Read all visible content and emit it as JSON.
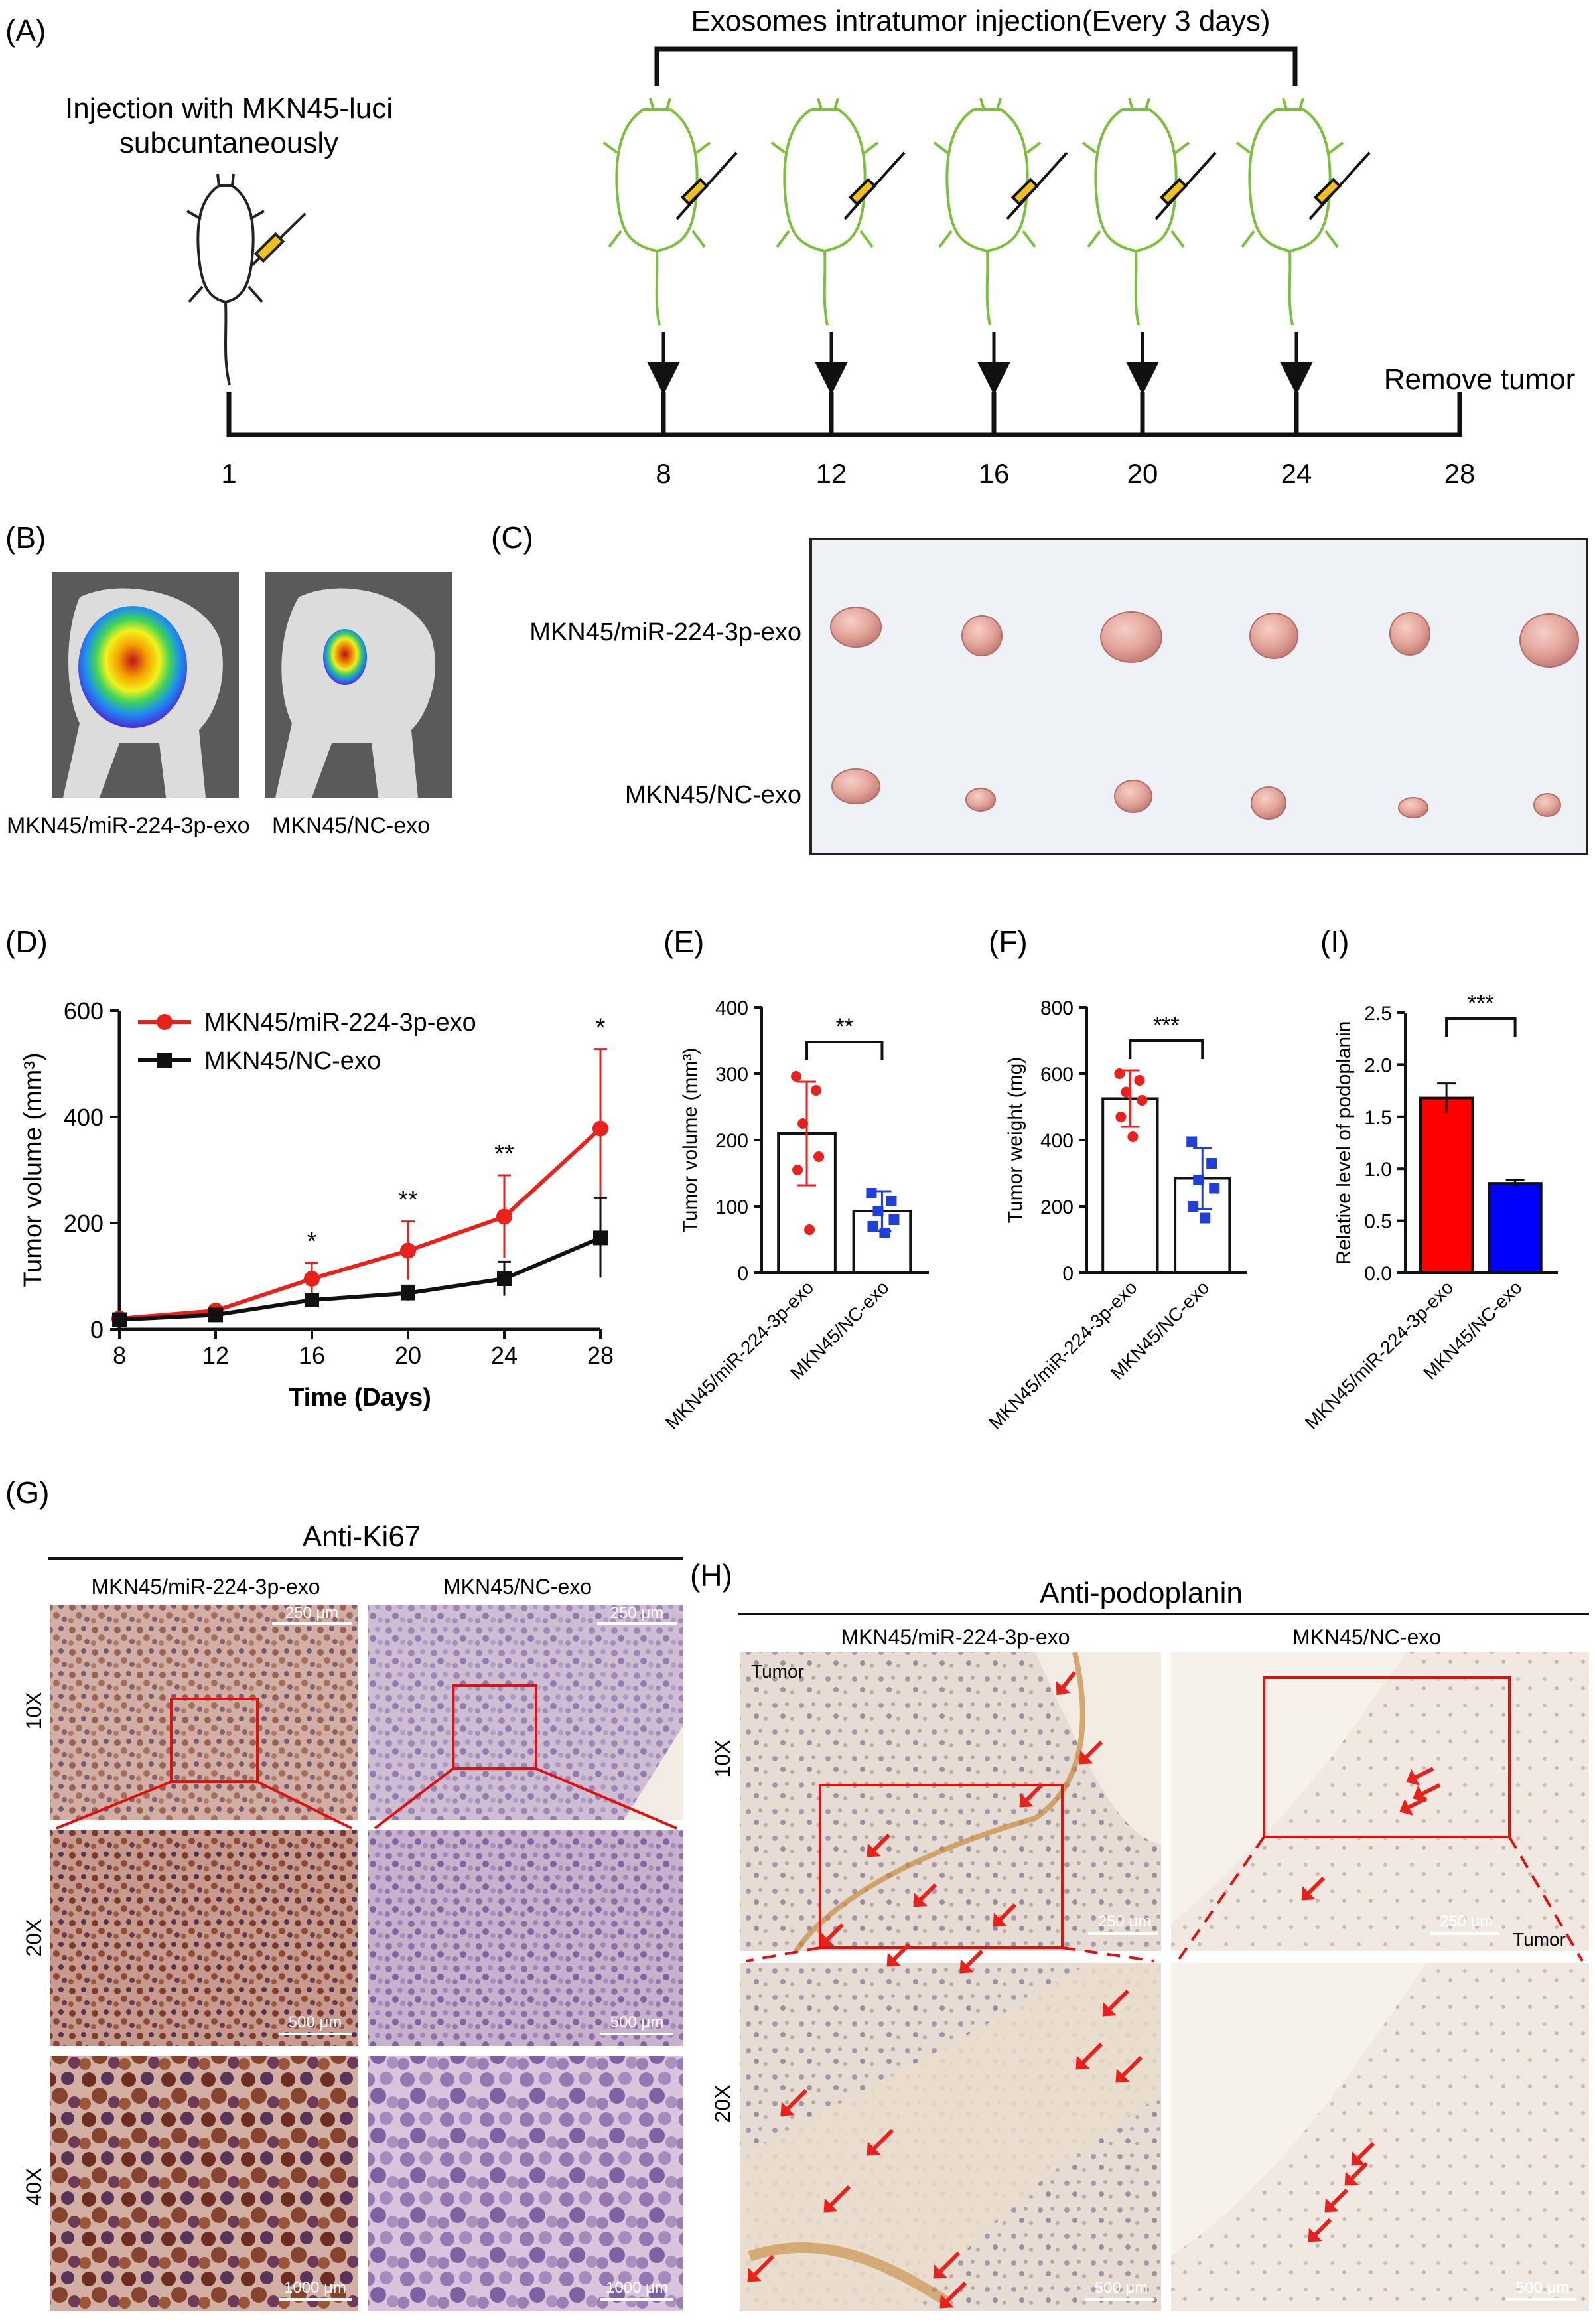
{
  "panels": {
    "A": {
      "letter": "(A)",
      "injection_label_line1": "Injection with MKN45-luci",
      "injection_label_line2": "subcuntaneously",
      "exosome_label": "Exosomes intratumor injection(Every 3 days)",
      "remove_label": "Remove tumor",
      "timeline_days": [
        "1",
        "8",
        "12",
        "16",
        "20",
        "24",
        "28"
      ]
    },
    "B": {
      "letter": "(B)",
      "label_left": "MKN45/miR-224-3p-exo",
      "label_right": "MKN45/NC-exo"
    },
    "C": {
      "letter": "(C)",
      "row1_label": "MKN45/miR-224-3p-exo",
      "row2_label": "MKN45/NC-exo"
    },
    "D": {
      "letter": "(D)"
    },
    "E": {
      "letter": "(E)"
    },
    "F": {
      "letter": "(F)"
    },
    "I": {
      "letter": "(I)"
    },
    "G": {
      "letter": "(G)",
      "title": "Anti-Ki67",
      "col1": "MKN45/miR-224-3p-exo",
      "col2": "MKN45/NC-exo",
      "mag_10x": "10X",
      "mag_20x": "20X",
      "mag_40x": "40X",
      "scale_10x": "250 μm",
      "scale_20x": "500 μm",
      "scale_40x": "1000 μm"
    },
    "H": {
      "letter": "(H)",
      "title": "Anti-podoplanin",
      "col1": "MKN45/miR-224-3p-exo",
      "col2": "MKN45/NC-exo",
      "mag_10x": "10X",
      "mag_20x": "20X",
      "tumor_label": "Tumor",
      "scale_10x": "250 μm",
      "scale_20x": "500 μm"
    }
  },
  "chart_data": [
    {
      "id": "D",
      "type": "line",
      "xlabel": "Time (Days)",
      "ylabel": "Tumor volume  (mm³)",
      "x": [
        8,
        12,
        16,
        20,
        24,
        28
      ],
      "xticks": [
        "8",
        "12",
        "16",
        "20",
        "24",
        "28"
      ],
      "ylim": [
        0,
        600
      ],
      "yticks": [
        "0",
        "200",
        "400",
        "600"
      ],
      "series": [
        {
          "name": "MKN45/miR-224-3p-exo",
          "color": "#e8211c",
          "marker": "circle",
          "values": [
            20,
            35,
            95,
            148,
            212,
            378
          ],
          "err": [
            5,
            6,
            30,
            55,
            78,
            150
          ]
        },
        {
          "name": "MKN45/NC-exo",
          "color": "#111111",
          "marker": "square",
          "values": [
            18,
            27,
            55,
            68,
            95,
            172
          ],
          "err": [
            4,
            4,
            10,
            14,
            32,
            75
          ]
        }
      ],
      "significance": [
        "",
        "",
        "*",
        "**",
        "**",
        "*"
      ],
      "legend": "top-left"
    },
    {
      "id": "E",
      "type": "bar",
      "ylabel": "Tumor volume  (mm³)",
      "categories": [
        "MKN45/miR-224-3p-exo",
        "MKN45/NC-exo"
      ],
      "values": [
        210,
        93
      ],
      "err": [
        78,
        30
      ],
      "point_colors": [
        "#e8211c",
        "#1f3fd8"
      ],
      "points": [
        [
          296,
          275,
          225,
          175,
          155,
          65
        ],
        [
          120,
          108,
          93,
          80,
          70,
          60
        ]
      ],
      "ylim": [
        0,
        400
      ],
      "yticks": [
        "0",
        "100",
        "200",
        "300",
        "400"
      ],
      "significance": "**"
    },
    {
      "id": "F",
      "type": "bar",
      "ylabel": "Tumor weight  (mg)",
      "categories": [
        "MKN45/miR-224-3p-exo",
        "MKN45/NC-exo"
      ],
      "values": [
        525,
        285
      ],
      "err": [
        85,
        92
      ],
      "point_colors": [
        "#e8211c",
        "#1f3fd8"
      ],
      "points": [
        [
          600,
          580,
          545,
          520,
          470,
          410
        ],
        [
          395,
          330,
          280,
          255,
          200,
          165
        ]
      ],
      "ylim": [
        0,
        800
      ],
      "yticks": [
        "0",
        "200",
        "400",
        "600",
        "800"
      ],
      "significance": "***"
    },
    {
      "id": "I",
      "type": "bar",
      "ylabel": "Relative level of podoplanin",
      "categories": [
        "MKN45/miR-224-3p-exo",
        "MKN45/NC-exo"
      ],
      "values": [
        1.68,
        0.86
      ],
      "err": [
        0.14,
        0.03
      ],
      "bar_colors": [
        "#ff0000",
        "#0000ff"
      ],
      "ylim": [
        0,
        2.5
      ],
      "yticks": [
        "0.0",
        "0.5",
        "1.0",
        "1.5",
        "2.0",
        "2.5"
      ],
      "significance": "***"
    }
  ]
}
